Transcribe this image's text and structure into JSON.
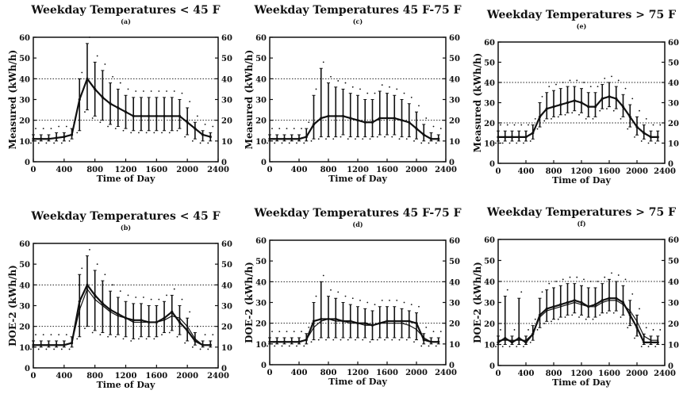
{
  "chart_data": [
    {
      "type": "line",
      "title": "Weekday Temperatures < 45 F",
      "subtitle": "(a)",
      "xlabel": "Time of Day",
      "ylabel": "Measured (kWh/h)",
      "xlim": [
        0,
        2400
      ],
      "ylim": [
        0,
        60
      ],
      "xticks": [
        "0",
        "400",
        "800",
        "1200",
        "1600",
        "2000",
        "2400"
      ],
      "yticks": [
        "0",
        "10",
        "20",
        "30",
        "40",
        "50",
        "60"
      ],
      "right_yticks": [
        "0",
        "10",
        "20",
        "30",
        "40",
        "50",
        "60"
      ],
      "gridlines": [
        20,
        40
      ],
      "x": [
        0,
        100,
        200,
        300,
        400,
        500,
        600,
        700,
        800,
        900,
        1000,
        1100,
        1200,
        1300,
        1400,
        1500,
        1600,
        1700,
        1800,
        1900,
        2000,
        2100,
        2200,
        2300
      ],
      "series": [
        {
          "values": [
            11,
            11,
            11,
            11.5,
            12,
            13,
            30,
            40,
            35,
            31,
            28,
            26,
            24,
            22,
            22,
            22,
            22,
            22,
            22,
            22,
            19,
            16,
            13,
            12
          ]
        }
      ],
      "low": [
        10,
        10,
        10,
        10,
        10,
        11,
        15,
        25,
        22,
        20,
        18,
        17,
        16,
        15,
        15,
        15,
        15,
        15,
        15,
        16,
        13,
        11,
        10,
        10
      ],
      "high": [
        13,
        13,
        13,
        14,
        14,
        16,
        40,
        57,
        48,
        44,
        38,
        35,
        32,
        31,
        31,
        31,
        31,
        31,
        31,
        30,
        26,
        19,
        15,
        14
      ]
    },
    {
      "type": "line",
      "title": "Weekday Temperatures 45 F-75 F",
      "subtitle": "(c)",
      "xlabel": "Time of Day",
      "ylabel": "Measured (kWh/h)",
      "xlim": [
        0,
        2400
      ],
      "ylim": [
        0,
        60
      ],
      "xticks": [
        "0",
        "400",
        "800",
        "1200",
        "1600",
        "2000",
        "2400"
      ],
      "yticks": [
        "0",
        "10",
        "20",
        "30",
        "40",
        "50",
        "60"
      ],
      "right_yticks": [
        "0",
        "10",
        "20",
        "30",
        "40",
        "50",
        "60"
      ],
      "gridlines": [
        20,
        40
      ],
      "x": [
        0,
        100,
        200,
        300,
        400,
        500,
        600,
        700,
        800,
        900,
        1000,
        1100,
        1200,
        1300,
        1400,
        1500,
        1600,
        1700,
        1800,
        1900,
        2000,
        2100,
        2200,
        2300
      ],
      "series": [
        {
          "values": [
            11,
            11,
            11,
            11,
            11,
            12,
            18,
            21,
            22,
            22,
            22,
            21,
            20,
            19,
            19,
            21,
            21,
            21,
            20,
            19,
            16,
            13,
            11,
            11
          ]
        }
      ],
      "low": [
        10,
        10,
        10,
        10,
        10,
        10,
        11,
        12,
        12,
        12,
        13,
        12,
        12,
        12,
        12,
        13,
        13,
        13,
        12,
        12,
        11,
        10,
        10,
        10
      ],
      "high": [
        13,
        13,
        13,
        13,
        13,
        16,
        32,
        45,
        38,
        36,
        35,
        33,
        32,
        30,
        30,
        34,
        33,
        32,
        30,
        28,
        24,
        18,
        14,
        13
      ]
    },
    {
      "type": "line",
      "title": "Weekday Temperatures > 75 F",
      "subtitle": "(e)",
      "xlabel": "Time of Day",
      "ylabel": "Measured (kWh/h)",
      "xlim": [
        0,
        2400
      ],
      "ylim": [
        0,
        60
      ],
      "xticks": [
        "0",
        "400",
        "800",
        "1200",
        "1600",
        "2000",
        "2400"
      ],
      "yticks": [
        "0",
        "10",
        "20",
        "30",
        "40",
        "50",
        "60"
      ],
      "right_yticks": [
        "0",
        "10",
        "20",
        "30",
        "40",
        "50",
        "60"
      ],
      "gridlines": [
        20,
        40
      ],
      "x": [
        0,
        100,
        200,
        300,
        400,
        500,
        600,
        700,
        800,
        900,
        1000,
        1100,
        1200,
        1300,
        1400,
        1500,
        1600,
        1700,
        1800,
        1900,
        2000,
        2100,
        2200,
        2300
      ],
      "series": [
        {
          "values": [
            13,
            13,
            13,
            13,
            13,
            15,
            23,
            27,
            28,
            29,
            30,
            31,
            30,
            28,
            28,
            32,
            33,
            32,
            28,
            23,
            18,
            15,
            13,
            13
          ]
        }
      ],
      "low": [
        11,
        11,
        11,
        11,
        11,
        12,
        18,
        22,
        23,
        24,
        25,
        26,
        25,
        23,
        23,
        27,
        28,
        27,
        23,
        18,
        14,
        12,
        11,
        11
      ],
      "high": [
        16,
        16,
        16,
        16,
        16,
        19,
        30,
        35,
        36,
        37,
        38,
        38,
        37,
        35,
        35,
        39,
        40,
        38,
        34,
        29,
        23,
        19,
        16,
        16
      ]
    },
    {
      "type": "line",
      "title": "Weekday Temperatures < 45 F",
      "subtitle": "(b)",
      "xlabel": "Time of Day",
      "ylabel": "DOE-2 (kWh/h)",
      "xlim": [
        0,
        2400
      ],
      "ylim": [
        0,
        60
      ],
      "xticks": [
        "0",
        "400",
        "800",
        "1200",
        "1600",
        "2000",
        "2400"
      ],
      "yticks": [
        "0",
        "10",
        "20",
        "30",
        "40",
        "50",
        "60"
      ],
      "right_yticks": [
        "0",
        "10",
        "20",
        "30",
        "40",
        "50",
        "60"
      ],
      "gridlines": [
        20,
        40
      ],
      "x": [
        0,
        100,
        200,
        300,
        400,
        500,
        600,
        700,
        800,
        900,
        1000,
        1100,
        1200,
        1300,
        1400,
        1500,
        1600,
        1700,
        1800,
        1900,
        2000,
        2100,
        2200,
        2300
      ],
      "series": [
        {
          "values": [
            11,
            11,
            11,
            11,
            11,
            12,
            32,
            40,
            35,
            31,
            28,
            26,
            24,
            23,
            23,
            22,
            22,
            24,
            27,
            22,
            18,
            13,
            11,
            11
          ]
        },
        {
          "values": [
            11,
            11,
            11,
            11,
            11,
            12,
            28,
            38,
            33,
            30,
            27,
            25,
            24,
            22,
            22,
            22,
            22,
            23,
            25,
            24,
            20,
            14,
            11,
            11
          ]
        }
      ],
      "low": [
        10,
        10,
        10,
        10,
        10,
        10,
        15,
        20,
        18,
        17,
        16,
        16,
        15,
        14,
        15,
        15,
        15,
        17,
        18,
        16,
        13,
        11,
        10,
        10
      ],
      "high": [
        13,
        13,
        13,
        13,
        13,
        15,
        45,
        54,
        47,
        42,
        37,
        34,
        32,
        31,
        31,
        30,
        30,
        32,
        35,
        30,
        24,
        17,
        13,
        13
      ]
    },
    {
      "type": "line",
      "title": "Weekday Temperatures 45 F-75 F",
      "subtitle": "(d)",
      "xlabel": "Time of Day",
      "ylabel": "DOE-2 (kWh/h)",
      "xlim": [
        0,
        2400
      ],
      "ylim": [
        0,
        60
      ],
      "xticks": [
        "0",
        "400",
        "800",
        "1200",
        "1600",
        "2000",
        "2400"
      ],
      "yticks": [
        "0",
        "10",
        "20",
        "30",
        "40",
        "50",
        "60"
      ],
      "right_yticks": [
        "0",
        "10",
        "20",
        "30",
        "40",
        "50",
        "60"
      ],
      "gridlines": [
        20,
        40
      ],
      "x": [
        0,
        100,
        200,
        300,
        400,
        500,
        600,
        700,
        800,
        900,
        1000,
        1100,
        1200,
        1300,
        1400,
        1500,
        1600,
        1700,
        1800,
        1900,
        2000,
        2100,
        2200,
        2300
      ],
      "series": [
        {
          "values": [
            11,
            11,
            11,
            11,
            11,
            12,
            21,
            22,
            22,
            22,
            21,
            21,
            20,
            20,
            19,
            20,
            21,
            21,
            21,
            21,
            20,
            12,
            11,
            11
          ]
        },
        {
          "values": [
            11,
            11,
            11,
            11,
            11,
            12,
            18,
            21,
            22,
            21,
            21,
            20,
            20,
            19,
            19,
            20,
            20,
            20,
            20,
            19,
            17,
            13,
            11,
            11
          ]
        }
      ],
      "low": [
        10,
        10,
        10,
        10,
        10,
        10,
        12,
        13,
        13,
        13,
        13,
        13,
        13,
        13,
        12,
        13,
        13,
        13,
        13,
        13,
        12,
        10,
        10,
        10
      ],
      "high": [
        13,
        13,
        13,
        13,
        13,
        15,
        30,
        40,
        33,
        32,
        30,
        29,
        28,
        27,
        26,
        28,
        28,
        28,
        27,
        26,
        25,
        15,
        13,
        13
      ]
    },
    {
      "type": "line",
      "title": "Weekday Temperatures > 75 F",
      "subtitle": "(f)",
      "xlabel": "Time of Day",
      "ylabel": "DOE-2 (kWh/h)",
      "xlim": [
        0,
        2400
      ],
      "ylim": [
        0,
        60
      ],
      "xticks": [
        "0",
        "400",
        "800",
        "1200",
        "1600",
        "2000",
        "2400"
      ],
      "yticks": [
        "0",
        "10",
        "20",
        "30",
        "40",
        "50",
        "60"
      ],
      "right_yticks": [
        "0",
        "10",
        "20",
        "30",
        "40",
        "50",
        "60"
      ],
      "gridlines": [
        20,
        40
      ],
      "x": [
        0,
        100,
        200,
        300,
        400,
        500,
        600,
        700,
        800,
        900,
        1000,
        1100,
        1200,
        1300,
        1400,
        1500,
        1600,
        1700,
        1800,
        1900,
        2000,
        2100,
        2200,
        2300
      ],
      "series": [
        {
          "values": [
            11,
            13,
            11,
            13,
            11,
            15,
            24,
            27,
            28,
            29,
            30,
            31,
            30,
            28,
            29,
            31,
            32,
            32,
            30,
            24,
            18,
            11,
            11,
            11
          ]
        },
        {
          "values": [
            12,
            12,
            12,
            12,
            12,
            15,
            23,
            26,
            27,
            28,
            29,
            30,
            29,
            28,
            28,
            30,
            31,
            31,
            29,
            26,
            21,
            14,
            12,
            12
          ]
        }
      ],
      "low": [
        10,
        10,
        10,
        10,
        10,
        12,
        18,
        21,
        22,
        23,
        24,
        25,
        24,
        23,
        23,
        25,
        26,
        26,
        24,
        19,
        14,
        10,
        10,
        10
      ],
      "high": [
        14,
        33,
        14,
        32,
        14,
        19,
        32,
        36,
        37,
        38,
        39,
        39,
        38,
        37,
        37,
        39,
        41,
        40,
        38,
        31,
        24,
        15,
        14,
        14
      ]
    }
  ]
}
